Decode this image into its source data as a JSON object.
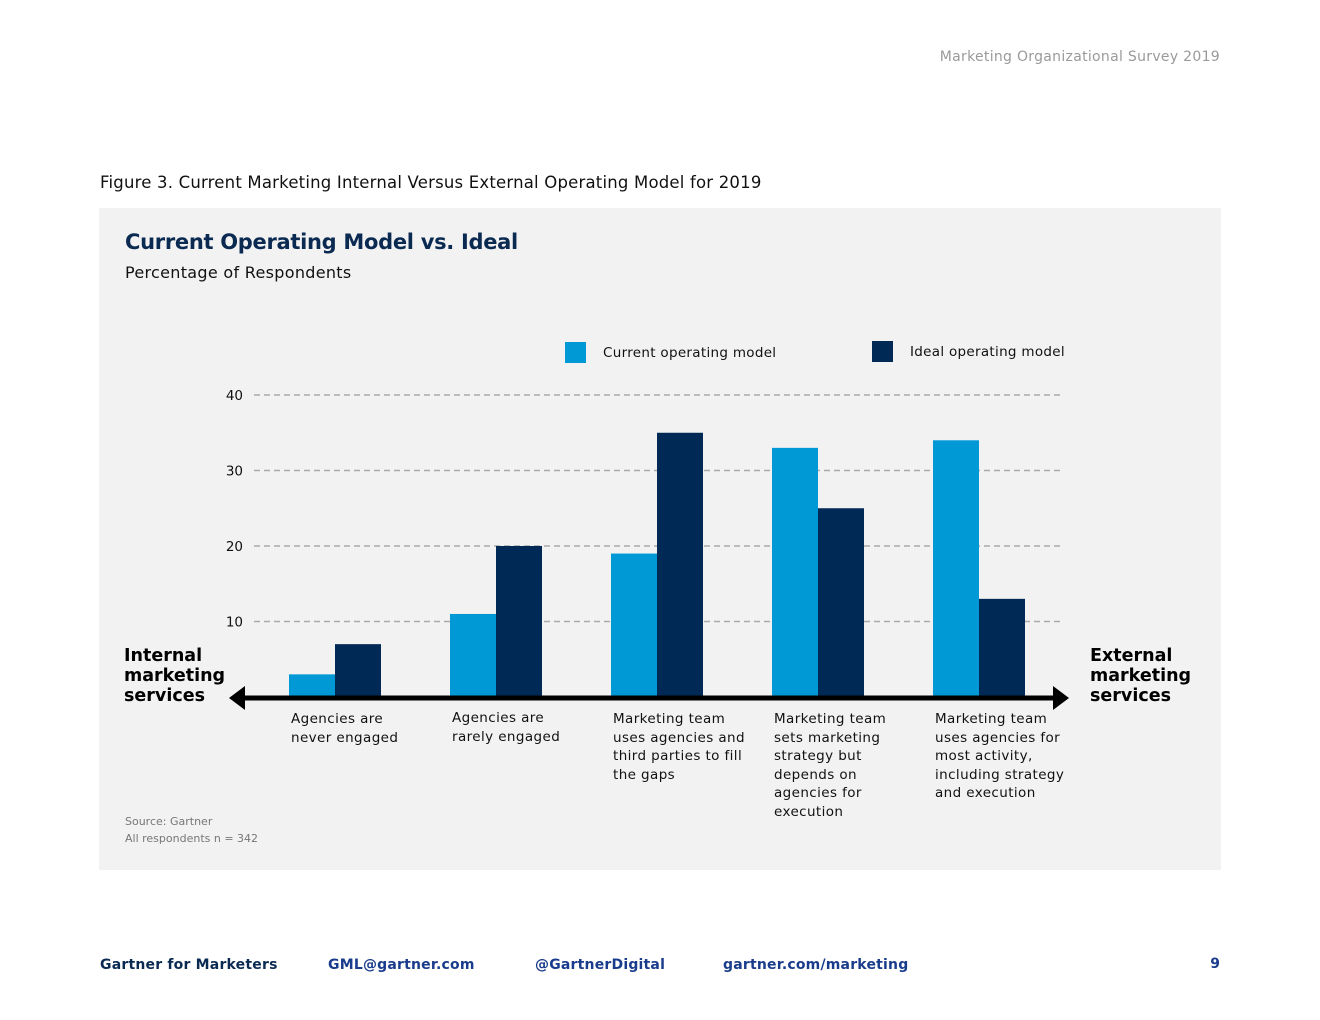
{
  "header": {
    "survey_title": "Marketing Organizational Survey 2019"
  },
  "figure": {
    "caption": "Figure 3. Current Marketing Internal Versus External Operating Model for 2019"
  },
  "colors": {
    "current": "#0099d6",
    "ideal": "#002955",
    "panel_bg": "#f2f2f2",
    "grid": "#aaaaaa",
    "title": "#0b2a52",
    "footer_link": "#1a3c8c"
  },
  "chart_data": {
    "type": "bar",
    "title": "Current Operating Model vs. Ideal",
    "subtitle": "Percentage of Respondents",
    "categories": [
      "Agencies are never engaged",
      "Agencies are rarely engaged",
      "Marketing team uses agencies and third parties to fill the gaps",
      "Marketing team sets marketing strategy but depends on agencies for execution",
      "Marketing team uses agencies for most activity, including strategy and execution"
    ],
    "category_lines": [
      [
        "Agencies are",
        "never engaged"
      ],
      [
        "Agencies are",
        "rarely engaged"
      ],
      [
        "Marketing team",
        "uses agencies and",
        "third parties to fill",
        "the gaps"
      ],
      [
        "Marketing team",
        "sets marketing",
        "strategy but",
        "depends on",
        "agencies for",
        "execution"
      ],
      [
        "Marketing team",
        "uses agencies for",
        "most activity,",
        "including strategy",
        "and execution"
      ]
    ],
    "series": [
      {
        "name": "Current operating model",
        "values": [
          3,
          11,
          19,
          33,
          34
        ]
      },
      {
        "name": "Ideal operating model",
        "values": [
          7,
          20,
          35,
          25,
          13
        ]
      }
    ],
    "y_ticks": [
      10,
      20,
      30,
      40
    ],
    "ylim": [
      0,
      40
    ],
    "grid": "dashed horizontal",
    "legend_position": "top",
    "axis_left_label": "Internal marketing services",
    "axis_right_label": "External marketing services"
  },
  "labels": {
    "internal_lines": [
      "Internal",
      "marketing",
      "services"
    ],
    "external_lines": [
      "External",
      "marketing",
      "services"
    ]
  },
  "source": {
    "line1": "Source: Gartner",
    "line2": "All respondents n = 342"
  },
  "footer": {
    "brand": "Gartner for Marketers",
    "email": "GML@gartner.com",
    "twitter": "@GartnerDigital",
    "website": "gartner.com/marketing",
    "page_number": "9"
  }
}
